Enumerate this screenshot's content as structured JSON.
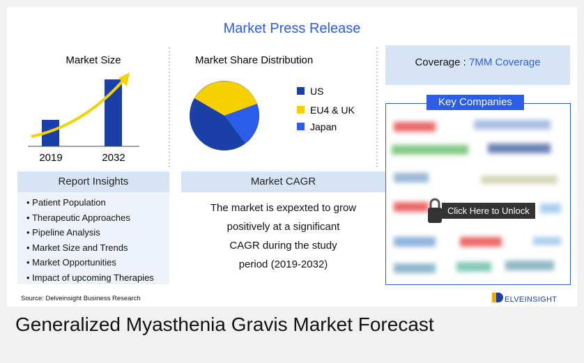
{
  "header": {
    "title": "Market Press Release"
  },
  "market_size": {
    "title": "Market Size",
    "years": [
      "2019",
      "2032"
    ]
  },
  "market_share": {
    "title": "Market Share Distribution",
    "legend": [
      "US",
      "EU4 & UK",
      "Japan"
    ]
  },
  "coverage": {
    "label": "Coverage :",
    "value": "7MM Coverage"
  },
  "key_companies": {
    "title": "Key Companies",
    "unlock": "Click Here to Unlock"
  },
  "insights": {
    "title": "Report Insights",
    "items": [
      "Patient Population",
      "Therapeutic Approaches",
      "Pipeline Analysis",
      "Market Size and Trends",
      "Market Opportunities",
      "Impact of upcoming Therapies"
    ]
  },
  "cagr": {
    "title": "Market CAGR",
    "lines": [
      "The market is expexted to grow",
      "positively at a significant",
      "CAGR during the study",
      "period (2019-2032)"
    ]
  },
  "source": "Source: Delveinsight Business Research",
  "brand": "ELVEINSIGHT",
  "footer": {
    "title": "Generalized Myasthenia Gravis Market Forecast"
  }
}
